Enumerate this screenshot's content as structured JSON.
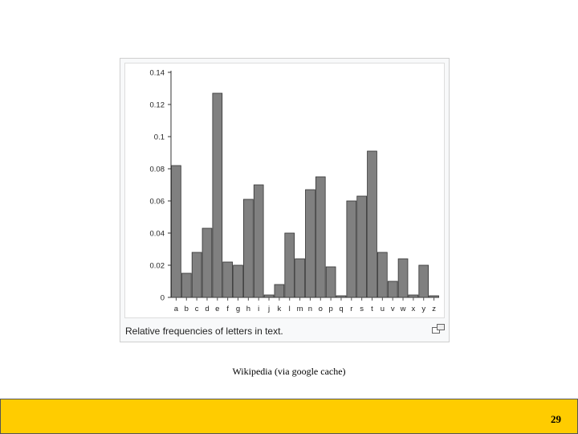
{
  "chart_data": {
    "type": "bar",
    "title": "",
    "xlabel": "",
    "ylabel": "",
    "categories": [
      "a",
      "b",
      "c",
      "d",
      "e",
      "f",
      "g",
      "h",
      "i",
      "j",
      "k",
      "l",
      "m",
      "n",
      "o",
      "p",
      "q",
      "r",
      "s",
      "t",
      "u",
      "v",
      "w",
      "x",
      "y",
      "z"
    ],
    "values": [
      0.082,
      0.015,
      0.028,
      0.043,
      0.127,
      0.022,
      0.02,
      0.061,
      0.07,
      0.0015,
      0.008,
      0.04,
      0.024,
      0.067,
      0.075,
      0.019,
      0.001,
      0.06,
      0.063,
      0.091,
      0.028,
      0.01,
      0.024,
      0.0015,
      0.02,
      0.001
    ],
    "ylim": [
      0,
      0.14
    ],
    "yticks": [
      "0",
      "0.02",
      "0.04",
      "0.06",
      "0.08",
      "0.1",
      "0.12",
      "0.14"
    ],
    "grid": false,
    "bar_color": "#808080",
    "bar_edge_color": "#333333"
  },
  "caption": "Relative frequencies of letters in text.",
  "enlarge_icon": "magnify-clip-icon",
  "source_credit": "Wikipedia (via google cache)",
  "page_number": "29",
  "colors": {
    "footer": "#ffcc00"
  }
}
